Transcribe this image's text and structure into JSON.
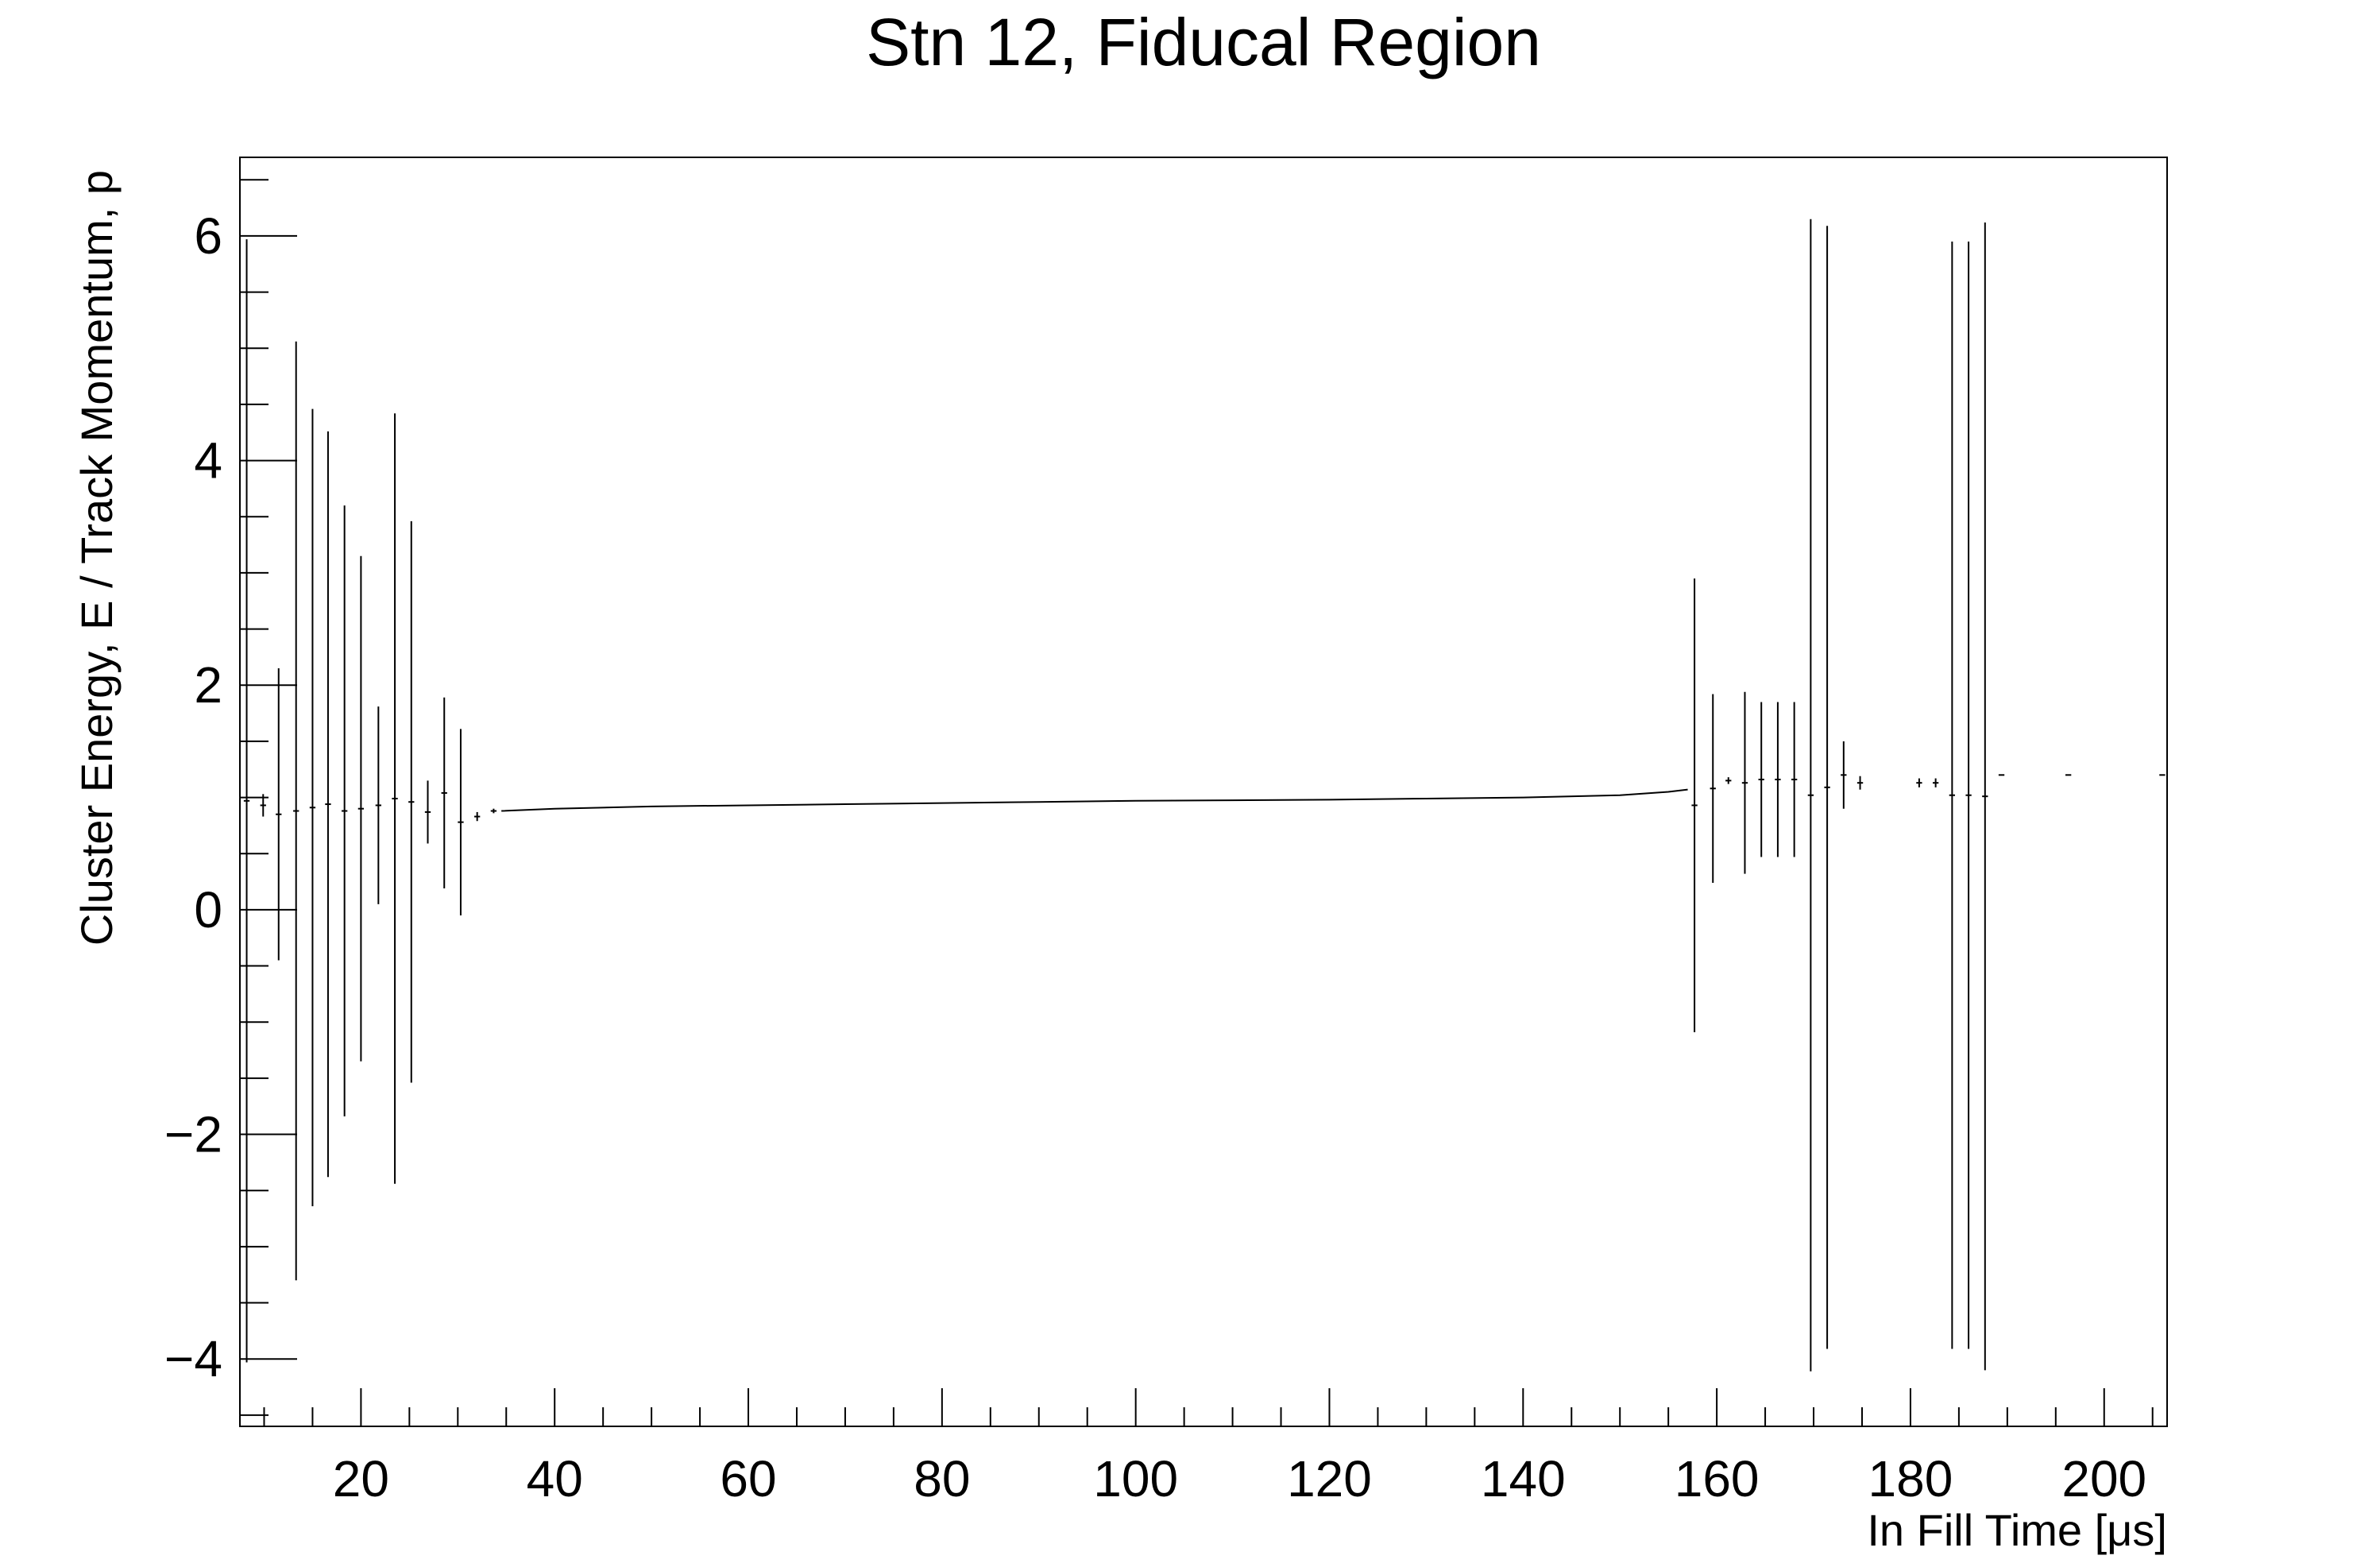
{
  "chart_data": {
    "type": "scatter",
    "title": "Stn 12, Fiducal Region",
    "xlabel": "In Fill Time [μs]",
    "ylabel": "Cluster Energy, E / Track Momentum, p",
    "xlim": [
      7.5,
      206.5
    ],
    "ylim": [
      -4.6,
      6.7
    ],
    "x_ticks": [
      20,
      40,
      60,
      80,
      100,
      120,
      140,
      160,
      180,
      200
    ],
    "x_tick_labels": [
      "20",
      "40",
      "60",
      "80",
      "100",
      "120",
      "140",
      "160",
      "180",
      "200"
    ],
    "y_ticks": [
      -4,
      -2,
      0,
      2,
      4,
      6
    ],
    "y_tick_labels": [
      "−4",
      "−2",
      "0",
      "2",
      "4",
      "6"
    ],
    "grid": false,
    "legend": "none",
    "bin_width": 0.6,
    "series": [
      {
        "marker": "error-bar",
        "color": "#000000",
        "points": [
          {
            "x": 8.2,
            "y": 0.97,
            "err": 5.0
          },
          {
            "x": 9.9,
            "y": 0.93,
            "err": 0.1
          },
          {
            "x": 11.5,
            "y": 0.85,
            "err": 1.3
          },
          {
            "x": 13.3,
            "y": 0.88,
            "err": 4.18
          },
          {
            "x": 15.0,
            "y": 0.91,
            "err": 3.55
          },
          {
            "x": 16.6,
            "y": 0.94,
            "err": 3.32
          },
          {
            "x": 18.3,
            "y": 0.88,
            "err": 2.72
          },
          {
            "x": 20.0,
            "y": 0.9,
            "err": 2.25
          },
          {
            "x": 21.8,
            "y": 0.93,
            "err": 0.88
          },
          {
            "x": 23.5,
            "y": 0.99,
            "err": 3.43
          },
          {
            "x": 25.2,
            "y": 0.96,
            "err": 2.5
          },
          {
            "x": 26.9,
            "y": 0.87,
            "err": 0.28
          },
          {
            "x": 28.6,
            "y": 1.04,
            "err": 0.85
          },
          {
            "x": 30.3,
            "y": 0.78,
            "err": 0.83
          },
          {
            "x": 32.0,
            "y": 0.83,
            "err": 0.04
          },
          {
            "x": 33.7,
            "y": 0.88,
            "err": 0.02
          },
          {
            "x": 157.7,
            "y": 0.93,
            "err": 2.02
          },
          {
            "x": 159.6,
            "y": 1.08,
            "err": 0.84
          },
          {
            "x": 161.2,
            "y": 1.15,
            "err": 0.03
          },
          {
            "x": 162.9,
            "y": 1.13,
            "err": 0.81
          },
          {
            "x": 164.6,
            "y": 1.16,
            "err": 0.69
          },
          {
            "x": 166.3,
            "y": 1.16,
            "err": 0.69
          },
          {
            "x": 168.0,
            "y": 1.16,
            "err": 0.69
          },
          {
            "x": 169.7,
            "y": 1.02,
            "err": 5.13
          },
          {
            "x": 171.4,
            "y": 1.09,
            "err": 5.0
          },
          {
            "x": 173.1,
            "y": 1.2,
            "err": 0.3
          },
          {
            "x": 174.8,
            "y": 1.13,
            "err": 0.06
          },
          {
            "x": 180.9,
            "y": 1.13,
            "err": 0.04
          },
          {
            "x": 182.6,
            "y": 1.13,
            "err": 0.04
          },
          {
            "x": 184.3,
            "y": 1.02,
            "err": 4.93
          },
          {
            "x": 186.0,
            "y": 1.02,
            "err": 4.93
          },
          {
            "x": 187.7,
            "y": 1.01,
            "err": 5.11
          },
          {
            "x": 189.4,
            "y": 1.2,
            "err": 0.0
          },
          {
            "x": 196.3,
            "y": 1.2,
            "err": 0.0
          },
          {
            "x": 206.0,
            "y": 1.2,
            "err": 0.0
          }
        ],
        "dense_band": {
          "x": [
            34.5,
            40,
            50,
            60,
            70,
            80,
            90,
            100,
            110,
            120,
            130,
            140,
            150,
            155,
            157
          ],
          "y": [
            0.88,
            0.9,
            0.92,
            0.93,
            0.94,
            0.95,
            0.96,
            0.97,
            0.975,
            0.98,
            0.99,
            1.0,
            1.02,
            1.05,
            1.07
          ]
        }
      }
    ]
  }
}
